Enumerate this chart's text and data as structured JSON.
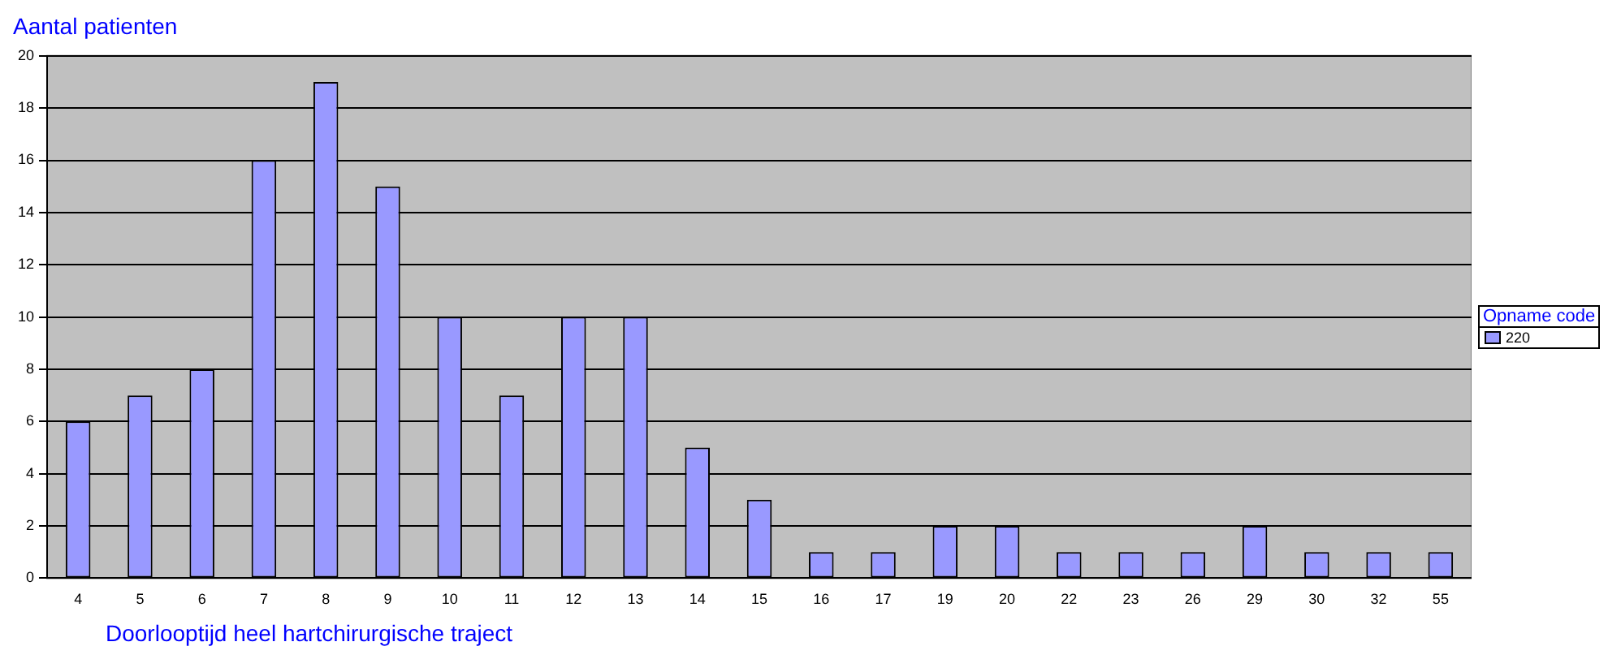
{
  "chart_data": {
    "type": "bar",
    "ylabel": "Aantal patienten",
    "xlabel": "Doorlooptijd heel hartchirurgische traject",
    "legend_title": "Opname code",
    "categories": [
      "4",
      "5",
      "6",
      "7",
      "8",
      "9",
      "10",
      "11",
      "12",
      "13",
      "14",
      "15",
      "16",
      "17",
      "19",
      "20",
      "22",
      "23",
      "26",
      "29",
      "30",
      "32",
      "55"
    ],
    "series": [
      {
        "name": "220",
        "color": "#9999ff",
        "values": [
          6,
          7,
          8,
          16,
          19,
          15,
          10,
          7,
          10,
          10,
          5,
          3,
          1,
          1,
          2,
          2,
          1,
          1,
          1,
          2,
          1,
          1,
          1
        ]
      }
    ],
    "ylim": [
      0,
      20
    ],
    "yticks": [
      0,
      2,
      4,
      6,
      8,
      10,
      12,
      14,
      16,
      18,
      20
    ],
    "grid": "y",
    "legend": "right"
  }
}
